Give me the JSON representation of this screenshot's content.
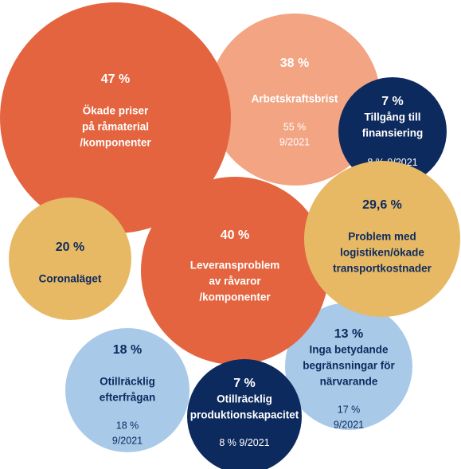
{
  "chart_data": {
    "type": "packed-bubble",
    "items": [
      {
        "label": [
          "Arbetskraftsbrist"
        ],
        "value": 38,
        "value_label": "38 %",
        "color": "#f2a483",
        "text_color": "#ffffff",
        "comparison": {
          "value": 55,
          "label": "55 %",
          "date": "9/2021"
        }
      },
      {
        "label": [
          "Ökade priser",
          "på råmaterial",
          "/komponenter"
        ],
        "value": 47,
        "value_label": "47 %",
        "color": "#e4643f",
        "text_color": "#ffffff"
      },
      {
        "label": [
          "Tillgång till",
          "finansiering"
        ],
        "value": 7,
        "value_label": "7 %",
        "color": "#0d2a5e",
        "text_color": "#ffffff",
        "comparison": {
          "value": 8,
          "label": "8 %",
          "date": "9/2021"
        }
      },
      {
        "label": [
          "Coronaläget"
        ],
        "value": 20,
        "value_label": "20 %",
        "color": "#e7b965",
        "text_color": "#0d2a5e"
      },
      {
        "label": [
          "Otillräcklig",
          "efterfrågan"
        ],
        "value": 18,
        "value_label": "18 %",
        "color": "#a9c9e8",
        "text_color": "#0d2a5e",
        "comparison": {
          "value": 18,
          "label": "18 %",
          "date": "9/2021"
        }
      },
      {
        "label": [
          "Inga betydande",
          "begränsningar för",
          "närvarande"
        ],
        "value": 13,
        "value_label": "13 %",
        "color": "#a9c9e8",
        "text_color": "#0d2a5e",
        "comparison": {
          "value": 17,
          "label": "17 %",
          "date": "9/2021"
        }
      },
      {
        "label": [
          "Leveransproblem",
          "av råvaror",
          "/komponenter"
        ],
        "value": 40,
        "value_label": "40 %",
        "color": "#e4643f",
        "text_color": "#ffffff"
      },
      {
        "label": [
          "Problem med",
          "logistiken/ökade",
          "transportkostnader"
        ],
        "value": 29.6,
        "value_label": "29,6 %",
        "color": "#e7b965",
        "text_color": "#0d2a5e"
      },
      {
        "label": [
          "Otillräcklig",
          "produktionskapacitet"
        ],
        "value": 7,
        "value_label": "7 %",
        "color": "#0d2a5e",
        "text_color": "#ffffff",
        "comparison": {
          "value": 8,
          "label": "8 %",
          "date": "9/2021"
        }
      }
    ]
  }
}
